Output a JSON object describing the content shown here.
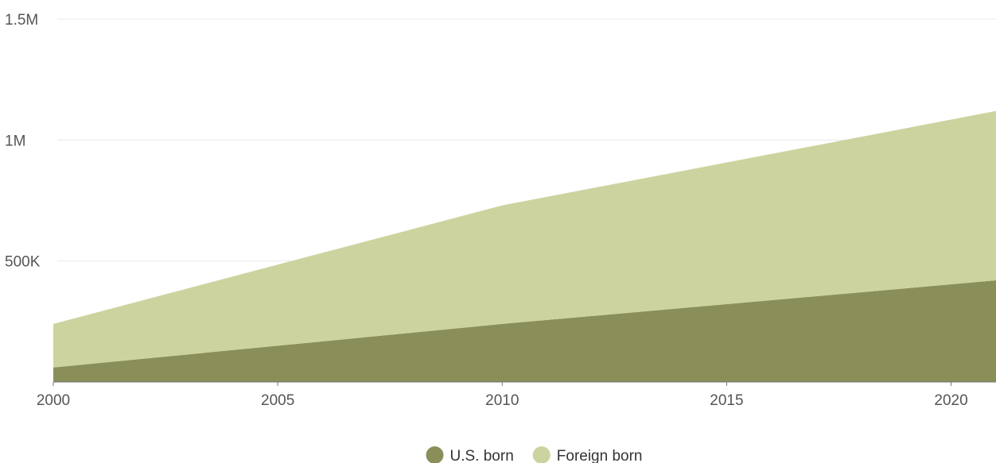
{
  "chart_data": {
    "type": "stacked-area",
    "x": [
      2000,
      2010,
      2021
    ],
    "series": [
      {
        "name": "U.S. born",
        "color": "#8a8f5a",
        "values": [
          60000,
          240000,
          420000
        ]
      },
      {
        "name": "Foreign born",
        "color": "#cdd39e",
        "values": [
          180000,
          490000,
          700000
        ]
      }
    ],
    "xlim": [
      2000,
      2021
    ],
    "xticks": [
      2000,
      2005,
      2010,
      2015,
      2020
    ],
    "ylim": [
      0,
      1500000
    ],
    "yticks": [
      {
        "value": 500000,
        "label": "500K"
      },
      {
        "value": 1000000,
        "label": "1M"
      },
      {
        "value": 1500000,
        "label": "1.5M"
      }
    ],
    "grid": true,
    "legend": "bottom"
  }
}
